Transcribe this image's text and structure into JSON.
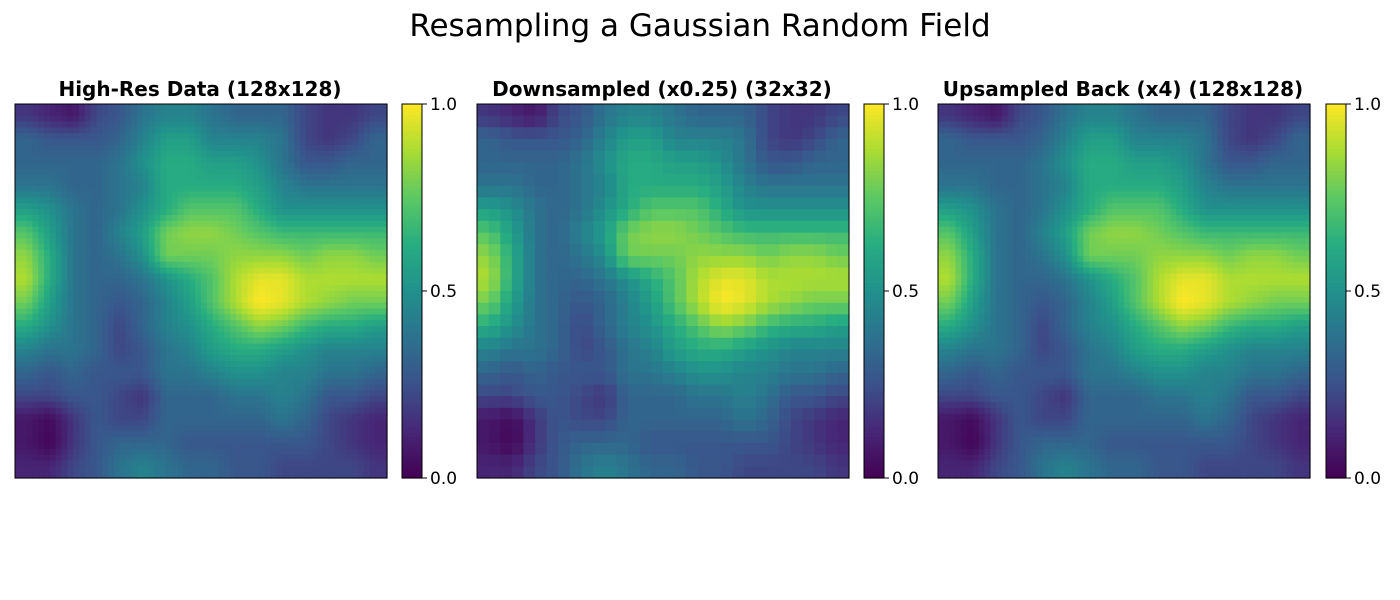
{
  "title": "Resampling a Gaussian Random Field",
  "chart_data": [
    {
      "type": "heatmap",
      "title": "High-Res Data (128x128)",
      "resolution": "128x128",
      "colormap": "viridis",
      "colorbar": {
        "range": [
          0,
          1
        ],
        "ticks": [
          "0.0",
          "0.5",
          "1.0"
        ]
      },
      "axes_visible": false,
      "rendering": "smooth"
    },
    {
      "type": "heatmap",
      "title": "Downsampled (x0.25) (32x32)",
      "resolution": "32x32",
      "colormap": "viridis",
      "colorbar": {
        "range": [
          0,
          1
        ],
        "ticks": [
          "0.0",
          "0.5",
          "1.0"
        ]
      },
      "axes_visible": false,
      "rendering": "pixelated"
    },
    {
      "type": "heatmap",
      "title": "Upsampled Back (x4) (128x128)",
      "resolution": "128x128",
      "colormap": "viridis",
      "colorbar": {
        "range": [
          0,
          1
        ],
        "ticks": [
          "0.0",
          "0.5",
          "1.0"
        ]
      },
      "axes_visible": false,
      "rendering": "smooth"
    }
  ],
  "field_estimate_16x16": [
    [
      0.2,
      0.15,
      0.1,
      0.25,
      0.3,
      0.4,
      0.45,
      0.45,
      0.4,
      0.35,
      0.35,
      0.35,
      0.25,
      0.2,
      0.2,
      0.25
    ],
    [
      0.35,
      0.3,
      0.3,
      0.3,
      0.35,
      0.45,
      0.55,
      0.55,
      0.45,
      0.45,
      0.45,
      0.4,
      0.25,
      0.2,
      0.25,
      0.35
    ],
    [
      0.35,
      0.35,
      0.35,
      0.35,
      0.4,
      0.5,
      0.6,
      0.6,
      0.55,
      0.55,
      0.5,
      0.4,
      0.3,
      0.3,
      0.35,
      0.35
    ],
    [
      0.4,
      0.4,
      0.35,
      0.35,
      0.4,
      0.45,
      0.6,
      0.6,
      0.6,
      0.6,
      0.55,
      0.45,
      0.4,
      0.4,
      0.4,
      0.4
    ],
    [
      0.55,
      0.5,
      0.4,
      0.35,
      0.4,
      0.5,
      0.6,
      0.7,
      0.7,
      0.7,
      0.6,
      0.5,
      0.5,
      0.5,
      0.5,
      0.5
    ],
    [
      0.7,
      0.55,
      0.4,
      0.35,
      0.45,
      0.55,
      0.75,
      0.8,
      0.8,
      0.75,
      0.7,
      0.65,
      0.65,
      0.65,
      0.65,
      0.65
    ],
    [
      0.8,
      0.6,
      0.4,
      0.35,
      0.4,
      0.5,
      0.75,
      0.75,
      0.75,
      0.8,
      0.8,
      0.8,
      0.75,
      0.8,
      0.8,
      0.75
    ],
    [
      0.85,
      0.6,
      0.4,
      0.35,
      0.35,
      0.4,
      0.5,
      0.6,
      0.7,
      0.85,
      0.95,
      0.95,
      0.85,
      0.85,
      0.85,
      0.85
    ],
    [
      0.75,
      0.55,
      0.4,
      0.35,
      0.3,
      0.35,
      0.45,
      0.55,
      0.7,
      0.85,
      1.0,
      0.95,
      0.85,
      0.8,
      0.75,
      0.75
    ],
    [
      0.6,
      0.5,
      0.4,
      0.35,
      0.25,
      0.35,
      0.45,
      0.5,
      0.6,
      0.7,
      0.8,
      0.75,
      0.65,
      0.6,
      0.6,
      0.55
    ],
    [
      0.45,
      0.4,
      0.4,
      0.35,
      0.25,
      0.3,
      0.4,
      0.45,
      0.55,
      0.6,
      0.6,
      0.55,
      0.5,
      0.45,
      0.45,
      0.45
    ],
    [
      0.35,
      0.3,
      0.35,
      0.3,
      0.3,
      0.3,
      0.4,
      0.4,
      0.45,
      0.5,
      0.5,
      0.45,
      0.45,
      0.4,
      0.4,
      0.35
    ],
    [
      0.25,
      0.25,
      0.3,
      0.3,
      0.25,
      0.2,
      0.35,
      0.35,
      0.35,
      0.4,
      0.4,
      0.45,
      0.4,
      0.3,
      0.3,
      0.25
    ],
    [
      0.1,
      0.05,
      0.2,
      0.3,
      0.25,
      0.25,
      0.35,
      0.35,
      0.35,
      0.35,
      0.35,
      0.4,
      0.35,
      0.25,
      0.2,
      0.15
    ],
    [
      0.1,
      0.02,
      0.2,
      0.3,
      0.35,
      0.35,
      0.35,
      0.3,
      0.3,
      0.3,
      0.3,
      0.3,
      0.3,
      0.25,
      0.2,
      0.15
    ],
    [
      0.15,
      0.15,
      0.25,
      0.3,
      0.4,
      0.45,
      0.4,
      0.35,
      0.35,
      0.3,
      0.3,
      0.25,
      0.25,
      0.25,
      0.25,
      0.2
    ]
  ]
}
